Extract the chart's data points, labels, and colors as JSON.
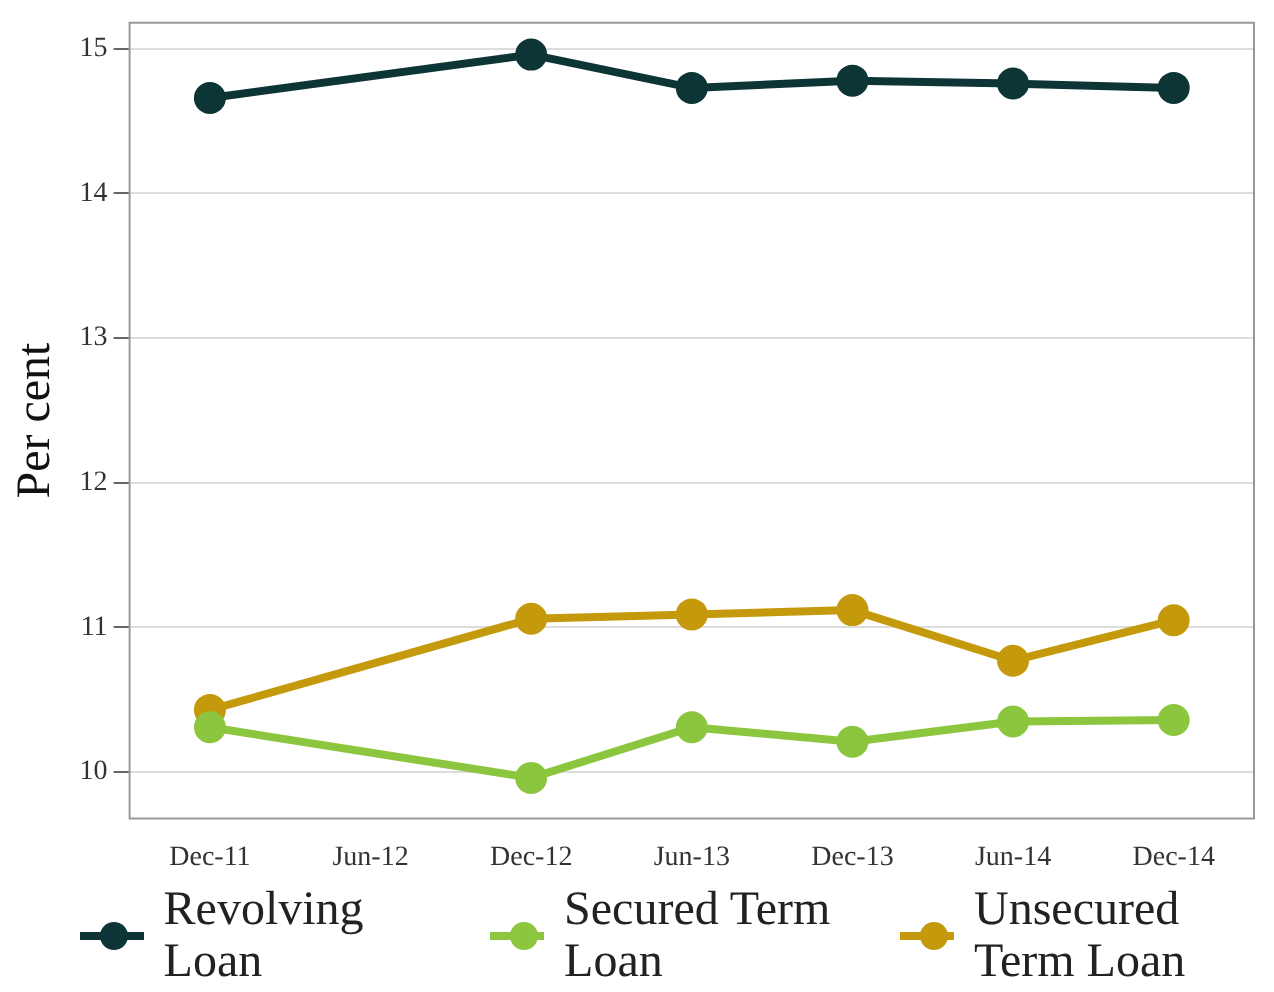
{
  "chart_data": {
    "type": "line",
    "ylabel": "Per cent",
    "categories": [
      "Dec-11",
      "Jun-12",
      "Dec-12",
      "Jun-13",
      "Dec-13",
      "Jun-14",
      "Dec-14"
    ],
    "series": [
      {
        "name": "Revolving Loan",
        "color": "#0d3535",
        "values": [
          14.66,
          null,
          14.96,
          14.73,
          14.78,
          14.76,
          14.73
        ]
      },
      {
        "name": "Secured Term Loan",
        "color": "#8cc63f",
        "values": [
          10.31,
          null,
          9.96,
          10.31,
          10.21,
          10.35,
          10.36
        ]
      },
      {
        "name": "Unsecured Term Loan",
        "color": "#c49a0c",
        "values": [
          10.43,
          null,
          11.06,
          11.09,
          11.12,
          10.77,
          11.05
        ]
      }
    ],
    "ylim": [
      9.68,
      15.18
    ],
    "yticks": [
      10,
      11,
      12,
      13,
      14,
      15
    ],
    "grid": "y",
    "legend": "bottom",
    "marker": "circle",
    "line_style": "solid"
  }
}
